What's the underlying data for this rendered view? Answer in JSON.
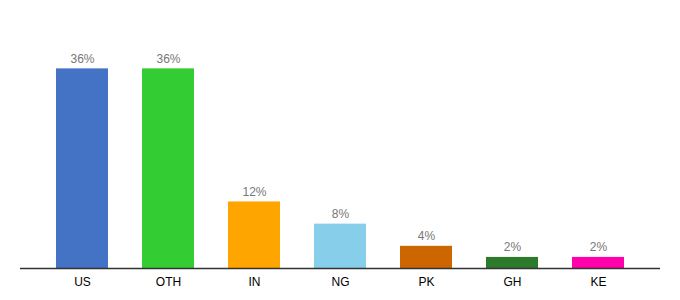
{
  "chart_data": {
    "type": "bar",
    "categories": [
      "US",
      "OTH",
      "IN",
      "NG",
      "PK",
      "GH",
      "KE"
    ],
    "values": [
      36,
      36,
      12,
      8,
      4,
      2,
      2
    ],
    "value_labels": [
      "36%",
      "36%",
      "12%",
      "8%",
      "4%",
      "2%",
      "2%"
    ],
    "colors": [
      "#4472c4",
      "#33cc33",
      "#ffa500",
      "#87ceeb",
      "#cc6600",
      "#2d7a2d",
      "#ff00aa"
    ],
    "ylim": [
      0,
      44
    ],
    "grid": false,
    "data_labels": true,
    "tick_labels": "x"
  }
}
